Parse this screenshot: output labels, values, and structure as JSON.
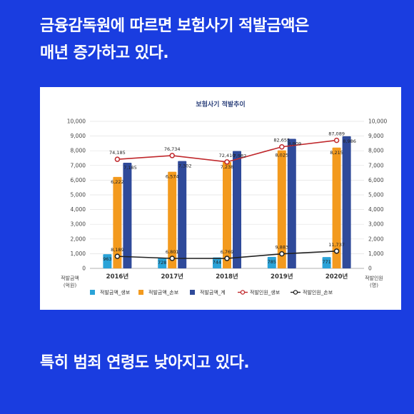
{
  "headline": {
    "line1": "금융감독원에 따르면 보험사기 적발금액은",
    "line2": "매년 증가하고 있다."
  },
  "footer": {
    "text": "특히 범죄 연령도 낮아지고 있다."
  },
  "chart_data": {
    "type": "bar",
    "title": "보험사기 적발추이",
    "categories": [
      "2016년",
      "2017년",
      "2018년",
      "2019년",
      "2020년"
    ],
    "ylabel_left": [
      "적발금액",
      "(억원)"
    ],
    "ylabel_right": [
      "적발인원",
      "(명)"
    ],
    "ylim_left": [
      0,
      10000
    ],
    "ylim_right": [
      0,
      10000
    ],
    "y_ticks": [
      "0",
      "1,000",
      "2,000",
      "3,000",
      "4,000",
      "5,000",
      "6,000",
      "7,000",
      "8,000",
      "9,000",
      "10,000"
    ],
    "grid": true,
    "legend_position": "bottom",
    "series": [
      {
        "name": "적발금액_생보",
        "kind": "bar",
        "color": "#2aa3d8",
        "values": [
          963,
          728,
          744,
          785,
          771
        ],
        "labels": [
          "963",
          "728",
          "744",
          "785",
          "771"
        ]
      },
      {
        "name": "적발금액_손보",
        "kind": "bar",
        "color": "#f39a1e",
        "values": [
          6222,
          6574,
          7238,
          8025,
          8215
        ],
        "labels": [
          "6,222",
          "6,574",
          "7,238",
          "8,025",
          "8,215"
        ]
      },
      {
        "name": "적발금액_계",
        "kind": "bar",
        "color": "#2f4a9a",
        "values": [
          7185,
          7302,
          7982,
          8809,
          8986
        ],
        "labels": [
          "7,185",
          "7,302",
          "7,982",
          "8,809",
          "8,986"
        ]
      },
      {
        "name": "적발인원_생보",
        "kind": "line",
        "color": "#c0282c",
        "values": [
          74185,
          76734,
          72410,
          82655,
          87089
        ],
        "labels": [
          "74,185",
          "76,734",
          "72,410",
          "82,655",
          "87,089"
        ]
      },
      {
        "name": "적발인원_손보",
        "kind": "line",
        "color": "#222222",
        "values": [
          8189,
          6801,
          6769,
          9883,
          11737
        ],
        "labels": [
          "8,189",
          "6,801",
          "6,769",
          "9,883",
          "11,737"
        ]
      }
    ]
  }
}
